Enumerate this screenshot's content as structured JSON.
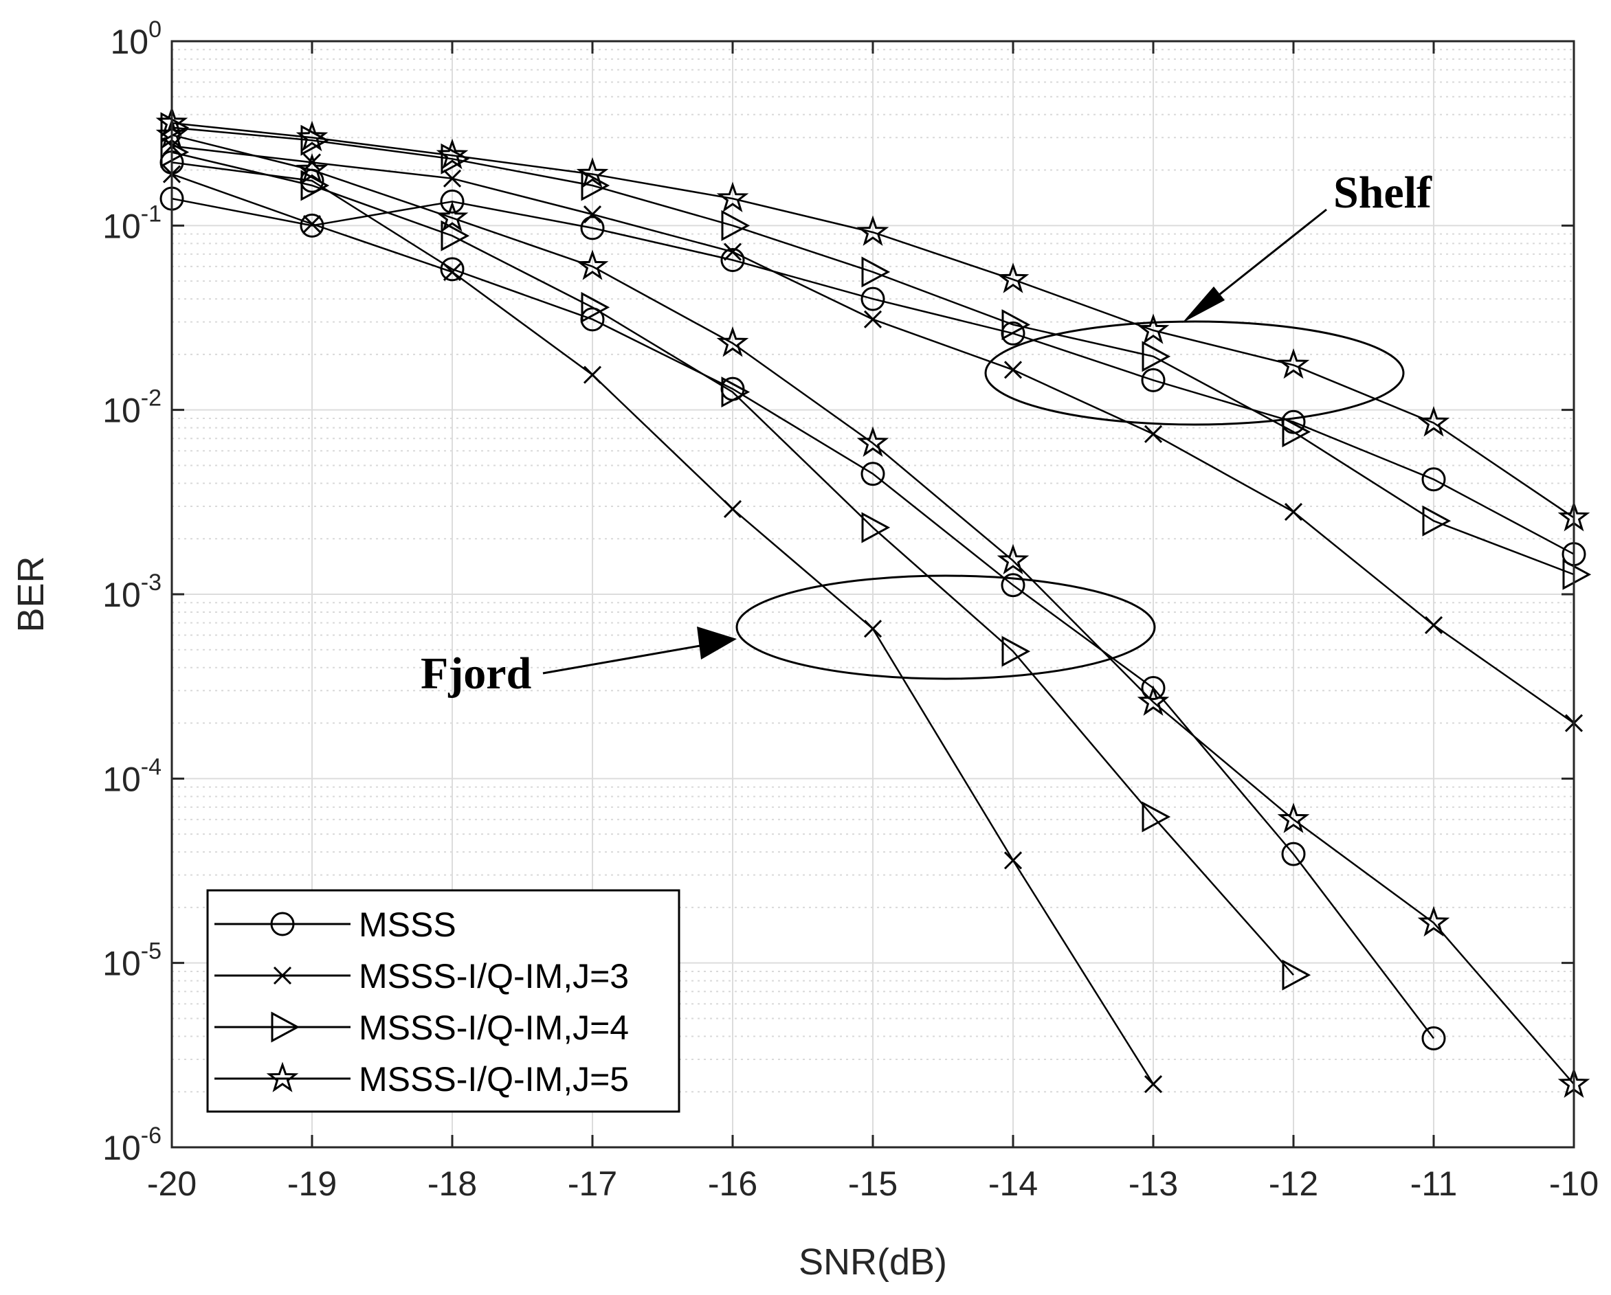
{
  "chart_data": {
    "type": "line",
    "title": "",
    "xlabel": "SNR(dB)",
    "ylabel": "BER",
    "xlim": [
      -20,
      -10
    ],
    "ylim_log10": [
      -6,
      0
    ],
    "y_scale": "log",
    "grid": true,
    "legend_position": "bottom-left",
    "x_ticks": [
      "-20",
      "-19",
      "-18",
      "-17",
      "-16",
      "-15",
      "-14",
      "-13",
      "-12",
      "-11",
      "-10"
    ],
    "y_tick_base": "10",
    "y_tick_exponents": [
      "0",
      "-1",
      "-2",
      "-3",
      "-4",
      "-5",
      "-6"
    ],
    "series": [
      {
        "name": "MSSS",
        "group": "Shelf",
        "marker": "circle",
        "x": [
          -20,
          -19,
          -18,
          -17,
          -16,
          -15,
          -14,
          -13,
          -12,
          -11,
          -10
        ],
        "y": [
          0.14,
          0.1,
          0.135,
          0.097,
          0.065,
          0.04,
          0.026,
          0.0145,
          0.0086,
          0.0042,
          0.00165
        ]
      },
      {
        "name": "MSSS-I/Q-IM,J=3",
        "group": "Shelf",
        "marker": "x",
        "x": [
          -20,
          -19,
          -18,
          -17,
          -16,
          -15,
          -14,
          -13,
          -12,
          -11,
          -10
        ],
        "y": [
          0.27,
          0.22,
          0.18,
          0.115,
          0.072,
          0.031,
          0.0165,
          0.0074,
          0.0028,
          0.00068,
          0.0002
        ]
      },
      {
        "name": "MSSS-I/Q-IM,J=4",
        "group": "Shelf",
        "marker": "triangle-right",
        "x": [
          -20,
          -19,
          -18,
          -17,
          -16,
          -15,
          -14,
          -13,
          -12,
          -11,
          -10
        ],
        "y": [
          0.34,
          0.29,
          0.23,
          0.165,
          0.1,
          0.056,
          0.029,
          0.0195,
          0.0076,
          0.0025,
          0.00128
        ]
      },
      {
        "name": "MSSS-I/Q-IM,J=5",
        "group": "Shelf",
        "marker": "star",
        "x": [
          -20,
          -19,
          -18,
          -17,
          -16,
          -15,
          -14,
          -13,
          -12,
          -11,
          -10
        ],
        "y": [
          0.36,
          0.3,
          0.24,
          0.19,
          0.14,
          0.092,
          0.051,
          0.027,
          0.0175,
          0.0085,
          0.0026
        ]
      },
      {
        "name": "MSSS",
        "group": "Fjord",
        "marker": "circle",
        "x": [
          -20,
          -19,
          -18,
          -17,
          -16,
          -15,
          -14,
          -13,
          -12,
          -11
        ],
        "y": [
          0.22,
          0.175,
          0.058,
          0.031,
          0.013,
          0.0045,
          0.00112,
          0.00031,
          3.9e-05,
          3.9e-06
        ]
      },
      {
        "name": "MSSS-I/Q-IM,J=3",
        "group": "Fjord",
        "marker": "x",
        "x": [
          -20,
          -19,
          -18,
          -17,
          -16,
          -15,
          -14,
          -13
        ],
        "y": [
          0.19,
          0.102,
          0.056,
          0.0155,
          0.0029,
          0.00065,
          3.6e-05,
          2.2e-06
        ]
      },
      {
        "name": "MSSS-I/Q-IM,J=4",
        "group": "Fjord",
        "marker": "triangle-right",
        "x": [
          -20,
          -19,
          -18,
          -17,
          -16,
          -15,
          -14,
          -13,
          -12
        ],
        "y": [
          0.25,
          0.165,
          0.088,
          0.036,
          0.0125,
          0.0023,
          0.00049,
          6.2e-05,
          8.6e-06
        ]
      },
      {
        "name": "MSSS-I/Q-IM,J=5",
        "group": "Fjord",
        "marker": "star",
        "x": [
          -20,
          -19,
          -18,
          -17,
          -16,
          -15,
          -14,
          -13,
          -12,
          -11,
          -10
        ],
        "y": [
          0.31,
          0.2,
          0.11,
          0.06,
          0.023,
          0.0066,
          0.00152,
          0.00026,
          6e-05,
          1.65e-05,
          2.2e-06
        ]
      }
    ],
    "legend": [
      "MSSS",
      "MSSS-I/Q-IM,J=3",
      "MSSS-I/Q-IM,J=4",
      "MSSS-I/Q-IM,J=5"
    ],
    "annotations": [
      "Shelf",
      "Fjord"
    ]
  }
}
